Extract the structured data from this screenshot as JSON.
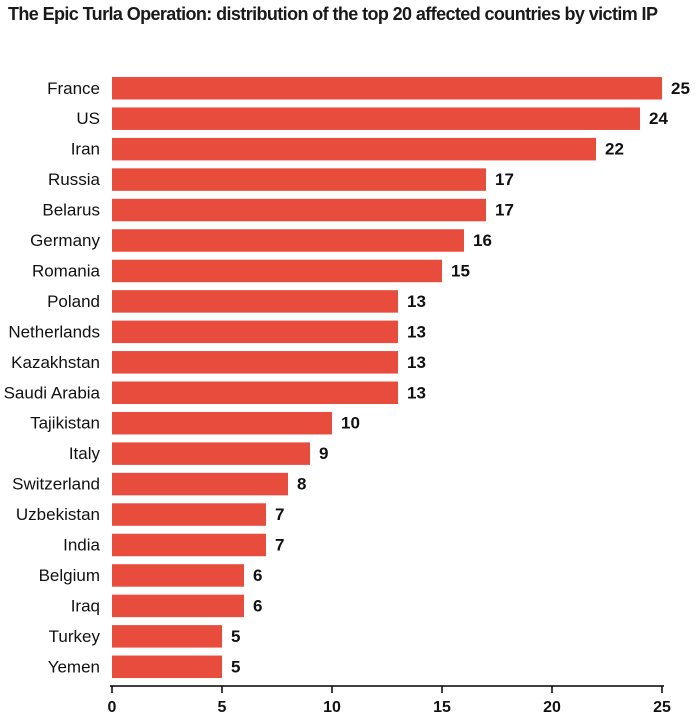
{
  "chart_data": {
    "type": "bar",
    "orientation": "horizontal",
    "title": "The Epic Turla Operation: distribution of the top 20 affected countries by victim IP",
    "categories": [
      "France",
      "US",
      "Iran",
      "Russia",
      "Belarus",
      "Germany",
      "Romania",
      "Poland",
      "Netherlands",
      "Kazakhstan",
      "Saudi Arabia",
      "Tajikistan",
      "Italy",
      "Switzerland",
      "Uzbekistan",
      "India",
      "Belgium",
      "Iraq",
      "Turkey",
      "Yemen"
    ],
    "values": [
      25,
      24,
      22,
      17,
      17,
      16,
      15,
      13,
      13,
      13,
      13,
      10,
      9,
      8,
      7,
      7,
      6,
      6,
      5,
      5
    ],
    "xlim": [
      0,
      25
    ],
    "xticks": [
      0,
      5,
      10,
      15,
      20,
      25
    ],
    "xlabel": "",
    "ylabel": "",
    "grid": false,
    "bar_color": "#e84c3d"
  }
}
